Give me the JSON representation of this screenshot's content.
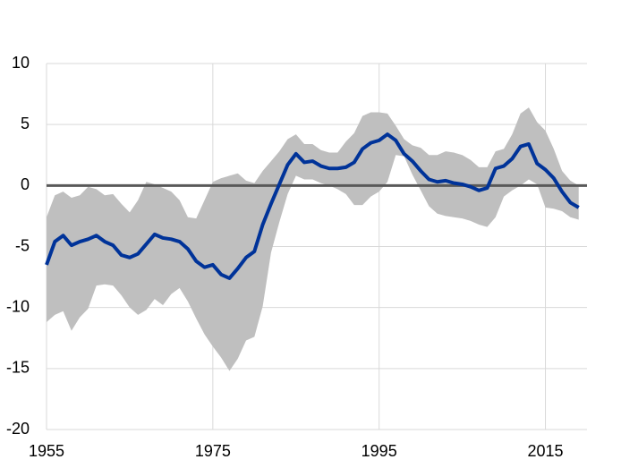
{
  "chart_data": {
    "type": "line",
    "x": [
      1955,
      1956,
      1957,
      1958,
      1959,
      1960,
      1961,
      1962,
      1963,
      1964,
      1965,
      1966,
      1967,
      1968,
      1969,
      1970,
      1971,
      1972,
      1973,
      1974,
      1975,
      1976,
      1977,
      1978,
      1979,
      1980,
      1981,
      1982,
      1983,
      1984,
      1985,
      1986,
      1987,
      1988,
      1989,
      1990,
      1991,
      1992,
      1993,
      1994,
      1995,
      1996,
      1997,
      1998,
      1999,
      2000,
      2001,
      2002,
      2003,
      2004,
      2005,
      2006,
      2007,
      2008,
      2009,
      2010,
      2011,
      2012,
      2013,
      2014,
      2015,
      2016,
      2017,
      2018,
      2019
    ],
    "series": [
      {
        "color": "#003399",
        "values": [
          -6.5,
          -4.6,
          -4.1,
          -4.9,
          -4.6,
          -4.4,
          -4.1,
          -4.6,
          -4.9,
          -5.7,
          -5.9,
          -5.6,
          -4.8,
          -4.0,
          -4.3,
          -4.4,
          -4.6,
          -5.2,
          -6.2,
          -6.7,
          -6.5,
          -7.3,
          -7.6,
          -6.8,
          -5.9,
          -5.4,
          -3.2,
          -1.5,
          0.1,
          1.7,
          2.6,
          1.9,
          2.0,
          1.6,
          1.4,
          1.4,
          1.5,
          1.9,
          3.0,
          3.5,
          3.7,
          4.2,
          3.7,
          2.6,
          2.0,
          1.2,
          0.5,
          0.3,
          0.4,
          0.2,
          0.1,
          -0.1,
          -0.4,
          -0.2,
          1.4,
          1.6,
          2.2,
          3.2,
          3.4,
          1.8,
          1.3,
          0.6,
          -0.5,
          -1.4,
          -1.8
        ]
      }
    ],
    "band": {
      "color": "#bfbfbf",
      "upper": [
        -2.6,
        -0.8,
        -0.5,
        -1.0,
        -0.8,
        -0.1,
        -0.3,
        -0.8,
        -0.7,
        -1.5,
        -2.2,
        -1.2,
        0.3,
        0.1,
        -0.2,
        -0.5,
        -1.2,
        -2.6,
        -2.7,
        -1.2,
        0.3,
        0.6,
        0.8,
        1.0,
        0.4,
        0.2,
        1.2,
        2.0,
        2.8,
        3.8,
        4.2,
        3.4,
        3.4,
        2.9,
        2.7,
        2.7,
        3.6,
        4.3,
        5.7,
        6.0,
        6.0,
        5.9,
        4.9,
        3.8,
        3.3,
        3.1,
        2.5,
        2.5,
        2.8,
        2.7,
        2.5,
        2.1,
        1.5,
        1.5,
        2.8,
        3.0,
        4.2,
        5.9,
        6.4,
        5.2,
        4.5,
        3.0,
        1.2,
        0.4,
        0.0
      ],
      "lower": [
        -11.2,
        -10.6,
        -10.3,
        -11.9,
        -10.8,
        -10.1,
        -8.2,
        -8.1,
        -8.2,
        -9.0,
        -10.0,
        -10.6,
        -10.2,
        -9.3,
        -9.8,
        -8.9,
        -8.4,
        -9.5,
        -10.9,
        -12.2,
        -13.2,
        -14.1,
        -15.2,
        -14.2,
        -12.7,
        -12.4,
        -9.9,
        -5.5,
        -3.0,
        -0.7,
        0.8,
        0.5,
        0.5,
        0.2,
        0.0,
        -0.3,
        -0.7,
        -1.6,
        -1.6,
        -0.9,
        -0.5,
        0.3,
        2.5,
        2.4,
        0.9,
        -0.4,
        -1.7,
        -2.3,
        -2.5,
        -2.6,
        -2.7,
        -2.9,
        -3.2,
        -3.4,
        -2.6,
        -0.9,
        -0.4,
        0.0,
        0.5,
        0.1,
        -1.8,
        -1.9,
        -2.1,
        -2.6,
        -2.8
      ]
    },
    "reference_line": 0,
    "reference_color": "#595959",
    "xlim": [
      1955,
      2020
    ],
    "xticks": [
      1955,
      1975,
      1995,
      2015
    ],
    "ylim": [
      -20,
      10
    ],
    "yticks": [
      -20,
      -15,
      -10,
      -5,
      0,
      5,
      10
    ],
    "grid": true
  }
}
